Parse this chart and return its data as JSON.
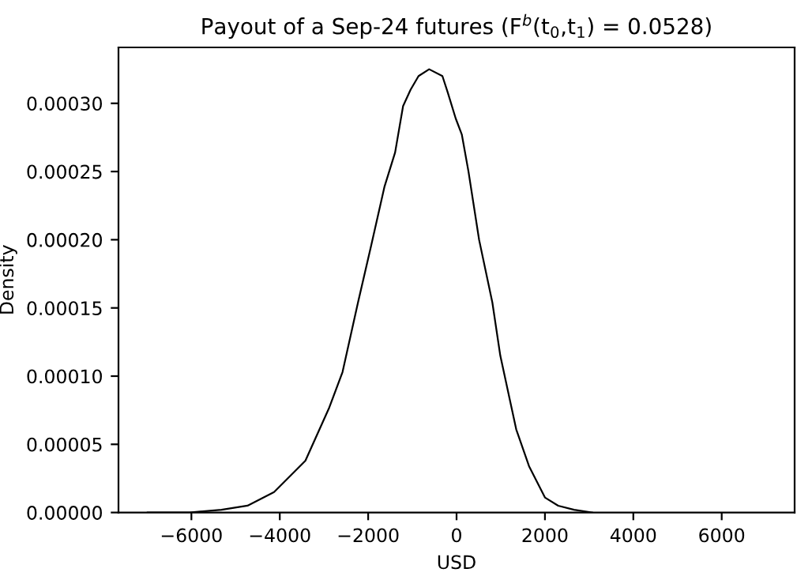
{
  "chart_data": {
    "type": "line",
    "title": "Payout of a Sep-24 futures (F$^{b}$(t$_{0}$,t$_{1}$) = 0.0528)",
    "xlabel": "USD",
    "ylabel": "Density",
    "series": [
      {
        "color": "#000000",
        "x": [
          -6990,
          -6040,
          -5320,
          -4730,
          -4130,
          -3420,
          -2880,
          -2580,
          -2230,
          -1930,
          -1630,
          -1390,
          -1210,
          -1040,
          -860,
          -620,
          -320,
          -200,
          -20,
          120,
          270,
          510,
          810,
          990,
          1350,
          1640,
          2000,
          2300,
          2660,
          3070
        ],
        "values": [
          0,
          0,
          2e-06,
          5e-06,
          1.5e-05,
          3.8e-05,
          7.7e-05,
          0.000103,
          0.000154,
          0.000196,
          0.000239,
          0.000264,
          0.000298,
          0.00031,
          0.00032,
          0.000325,
          0.00032,
          0.000308,
          0.000289,
          0.000277,
          0.00025,
          0.0002,
          0.000154,
          0.000115,
          6.1e-05,
          3.4e-05,
          1.1e-05,
          5e-06,
          2e-06,
          0
        ]
      }
    ],
    "xlim": [
      -7650,
      7650
    ],
    "ylim": [
      0,
      0.000341
    ],
    "xticks": [
      {
        "value": -6000,
        "label": "−6000"
      },
      {
        "value": -4000,
        "label": "−4000"
      },
      {
        "value": -2000,
        "label": "−2000"
      },
      0,
      2000,
      4000,
      6000
    ],
    "yticks": [
      {
        "value": 0,
        "label": "0.00000"
      },
      {
        "value": 5e-05,
        "label": "0.00005"
      },
      {
        "value": 0.0001,
        "label": "0.00010"
      },
      {
        "value": 0.00015,
        "label": "0.00015"
      },
      {
        "value": 0.0002,
        "label": "0.00020"
      },
      {
        "value": 0.00025,
        "label": "0.00025"
      },
      {
        "value": 0.0003,
        "label": "0.00030"
      }
    ],
    "grid": false,
    "legend": false,
    "marker": "none",
    "line_style": "solid"
  }
}
